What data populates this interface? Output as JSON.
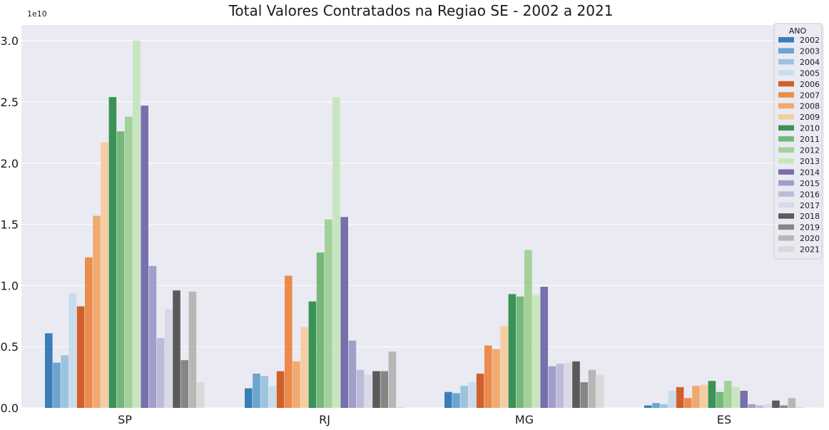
{
  "chart_data": {
    "type": "bar",
    "title": "Total Valores Contratados na Regiao SE - 2002 a 2021",
    "xlabel": "",
    "ylabel": "",
    "y_offset_label": "1e10",
    "ylim": [
      0,
      3.15
    ],
    "y_ticks": [
      "0.0",
      "0.5",
      "1.0",
      "1.5",
      "2.0",
      "2.5",
      "3.0"
    ],
    "grid": true,
    "legend_position": "top-right",
    "legend_title": "ANO",
    "categories": [
      "SP",
      "RJ",
      "MG",
      "ES"
    ],
    "series": [
      {
        "name": "2002",
        "color": "#3a7db8",
        "values": [
          0.61,
          0.16,
          0.13,
          0.02
        ]
      },
      {
        "name": "2003",
        "color": "#6aa6cf",
        "values": [
          0.37,
          0.28,
          0.12,
          0.04
        ]
      },
      {
        "name": "2004",
        "color": "#9cc4df",
        "values": [
          0.43,
          0.26,
          0.18,
          0.03
        ]
      },
      {
        "name": "2005",
        "color": "#c9dcec",
        "values": [
          0.94,
          0.18,
          0.21,
          0.14
        ]
      },
      {
        "name": "2006",
        "color": "#d0602a",
        "values": [
          0.83,
          0.3,
          0.28,
          0.17
        ]
      },
      {
        "name": "2007",
        "color": "#ec8b4c",
        "values": [
          1.23,
          1.08,
          0.51,
          0.08
        ]
      },
      {
        "name": "2008",
        "color": "#f0aa70",
        "values": [
          1.57,
          0.38,
          0.48,
          0.18
        ]
      },
      {
        "name": "2009",
        "color": "#f5cda2",
        "values": [
          2.17,
          0.66,
          0.67,
          0.19
        ]
      },
      {
        "name": "2010",
        "color": "#3a9256",
        "values": [
          2.54,
          0.87,
          0.93,
          0.22
        ]
      },
      {
        "name": "2011",
        "color": "#76b87a",
        "values": [
          2.26,
          1.27,
          0.91,
          0.13
        ]
      },
      {
        "name": "2012",
        "color": "#a2d199",
        "values": [
          2.38,
          1.54,
          1.29,
          0.22
        ]
      },
      {
        "name": "2013",
        "color": "#c8e6bd",
        "values": [
          3.0,
          2.54,
          0.92,
          0.17
        ]
      },
      {
        "name": "2014",
        "color": "#7870ac",
        "values": [
          2.47,
          1.56,
          0.99,
          0.14
        ]
      },
      {
        "name": "2015",
        "color": "#a19ec9",
        "values": [
          1.16,
          0.55,
          0.34,
          0.03
        ]
      },
      {
        "name": "2016",
        "color": "#bcbcd9",
        "values": [
          0.57,
          0.31,
          0.36,
          0.02
        ]
      },
      {
        "name": "2017",
        "color": "#d9d9e8",
        "values": [
          0.81,
          0.27,
          0.37,
          0.03
        ]
      },
      {
        "name": "2018",
        "color": "#5a5a5a",
        "values": [
          0.96,
          0.3,
          0.38,
          0.06
        ]
      },
      {
        "name": "2019",
        "color": "#868686",
        "values": [
          0.39,
          0.3,
          0.21,
          0.02
        ]
      },
      {
        "name": "2020",
        "color": "#b7b7b7",
        "values": [
          0.95,
          0.46,
          0.31,
          0.08
        ]
      },
      {
        "name": "2021",
        "color": "#d9d9d9",
        "values": [
          0.21,
          0.01,
          0.27,
          0.01
        ]
      }
    ]
  },
  "colors": {
    "plot_background": "#eaeaf2",
    "grid": "#ffffff"
  }
}
